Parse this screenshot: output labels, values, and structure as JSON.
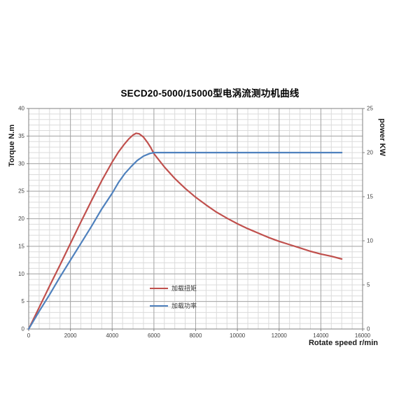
{
  "chart_data": {
    "type": "line",
    "title": "SECD20-5000/15000型电涡流测功机曲线",
    "x_axis": {
      "label": "Rotate speed r/min",
      "min": 0,
      "max": 16000,
      "ticks": [
        0,
        2000,
        4000,
        6000,
        8000,
        10000,
        12000,
        14000,
        16000
      ],
      "minor_step": 500
    },
    "left_axis": {
      "label": "Torque N.m",
      "min": 0,
      "max": 40,
      "ticks": [
        0,
        5,
        10,
        15,
        20,
        25,
        30,
        35,
        40
      ],
      "minor_step": 1
    },
    "right_axis": {
      "label": "power KW",
      "min": 0,
      "max": 25,
      "ticks": [
        0,
        5,
        10,
        15,
        20,
        25
      ]
    },
    "grid": {
      "enabled": true,
      "major_color": "#A6A6A6",
      "minor_color": "#DBDBDB",
      "axis_color": "#808080"
    },
    "legend_position": "inside-lower-left",
    "series": [
      {
        "name": "加载扭矩",
        "axis": "left",
        "color": "#C0504D",
        "points": [
          [
            0,
            0
          ],
          [
            500,
            3.9
          ],
          [
            1000,
            7.8
          ],
          [
            1500,
            11.6
          ],
          [
            2000,
            15.5
          ],
          [
            2500,
            19.4
          ],
          [
            3000,
            23.2
          ],
          [
            3500,
            26.9
          ],
          [
            4000,
            30.3
          ],
          [
            4300,
            32.1
          ],
          [
            4600,
            33.6
          ],
          [
            4800,
            34.5
          ],
          [
            5000,
            35.2
          ],
          [
            5150,
            35.5
          ],
          [
            5300,
            35.4
          ],
          [
            5500,
            34.8
          ],
          [
            5700,
            33.8
          ],
          [
            5850,
            32.9
          ],
          [
            6000,
            31.8
          ],
          [
            6500,
            29.4
          ],
          [
            7000,
            27.3
          ],
          [
            7500,
            25.5
          ],
          [
            8000,
            23.9
          ],
          [
            8500,
            22.5
          ],
          [
            9000,
            21.2
          ],
          [
            9500,
            20.1
          ],
          [
            10000,
            19.1
          ],
          [
            10500,
            18.2
          ],
          [
            11000,
            17.4
          ],
          [
            11500,
            16.6
          ],
          [
            12000,
            15.9
          ],
          [
            12500,
            15.3
          ],
          [
            13000,
            14.7
          ],
          [
            13500,
            14.1
          ],
          [
            14000,
            13.6
          ],
          [
            14500,
            13.2
          ],
          [
            15000,
            12.7
          ]
        ]
      },
      {
        "name": "加载功率",
        "axis": "right",
        "color": "#4F81BD",
        "points": [
          [
            0,
            0
          ],
          [
            500,
            2.0
          ],
          [
            1000,
            3.9
          ],
          [
            1500,
            5.9
          ],
          [
            2000,
            7.8
          ],
          [
            2500,
            9.7
          ],
          [
            3000,
            11.6
          ],
          [
            3500,
            13.6
          ],
          [
            4000,
            15.4
          ],
          [
            4300,
            16.6
          ],
          [
            4600,
            17.6
          ],
          [
            4900,
            18.4
          ],
          [
            5200,
            19.1
          ],
          [
            5500,
            19.6
          ],
          [
            5800,
            19.9
          ],
          [
            6000,
            20
          ],
          [
            7000,
            20
          ],
          [
            8000,
            20
          ],
          [
            9000,
            20
          ],
          [
            10000,
            20
          ],
          [
            11000,
            20
          ],
          [
            12000,
            20
          ],
          [
            13000,
            20
          ],
          [
            14000,
            20
          ],
          [
            15000,
            20
          ]
        ]
      }
    ]
  }
}
